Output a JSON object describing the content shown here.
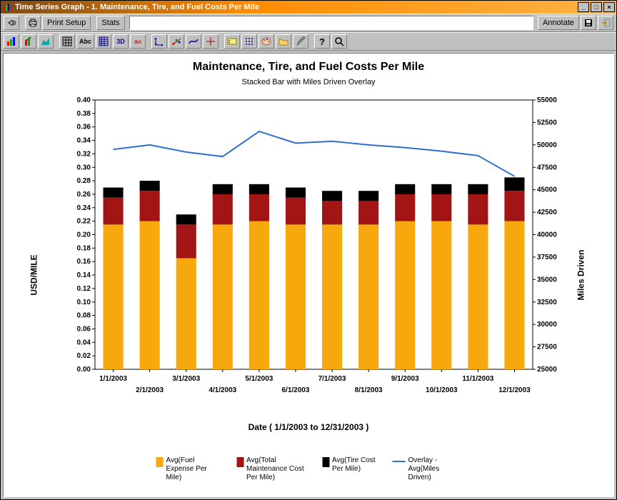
{
  "window": {
    "title": "Time Series Graph - 1.  Maintenance, Tire, and Fuel Costs Per Mile"
  },
  "toolbar1": {
    "print_setup": "Print Setup",
    "stats": "Stats",
    "annotate": "Annotate"
  },
  "chart": {
    "type": "stacked-bar-with-line-overlay",
    "title": "Maintenance, Tire, and Fuel Costs Per Mile",
    "subtitle": "Stacked Bar with Miles Driven Overlay",
    "xlabel": "Date  ( 1/1/2003  to  12/31/2003 )",
    "ylabel_left": "USD/MILE",
    "ylabel_right": "Miles Driven",
    "title_fontsize": 16,
    "subtitle_fontsize": 11,
    "label_fontsize": 12,
    "tick_fontsize": 10,
    "background_color": "#ffffff",
    "axis_color": "#000000",
    "y_left": {
      "min": 0.0,
      "max": 0.4,
      "step": 0.02
    },
    "y_right": {
      "min": 25000,
      "max": 55000,
      "step": 2500
    },
    "categories": [
      "1/1/2003",
      "2/1/2003",
      "3/1/2003",
      "4/1/2003",
      "5/1/2003",
      "6/1/2003",
      "7/1/2003",
      "8/1/2003",
      "9/1/2003",
      "10/1/2003",
      "11/1/2003",
      "12/1/2003"
    ],
    "bar_width": 0.55,
    "series": {
      "fuel": {
        "color": "#f7a80d",
        "label": "Avg(Fuel Expense Per Mile)",
        "values": [
          0.215,
          0.22,
          0.165,
          0.215,
          0.22,
          0.215,
          0.215,
          0.215,
          0.22,
          0.22,
          0.215,
          0.22
        ]
      },
      "maint": {
        "color": "#a31515",
        "label": "Avg(Total Maintenance Cost Per Mile)",
        "values": [
          0.04,
          0.045,
          0.05,
          0.045,
          0.04,
          0.04,
          0.035,
          0.035,
          0.04,
          0.04,
          0.045,
          0.045
        ]
      },
      "tire": {
        "color": "#000000",
        "label": "Avg(Tire Cost Per Mile)",
        "values": [
          0.015,
          0.015,
          0.015,
          0.015,
          0.015,
          0.015,
          0.015,
          0.015,
          0.015,
          0.015,
          0.015,
          0.02
        ]
      }
    },
    "overlay": {
      "color": "#2d6fd2",
      "line_width": 2,
      "label": "Overlay - Avg(Miles Driven)",
      "values": [
        49500,
        50000,
        49200,
        48700,
        51500,
        50200,
        50400,
        50000,
        49700,
        49300,
        48800,
        46500
      ]
    },
    "legend": [
      {
        "type": "swatch",
        "color": "#f7a80d",
        "label": "Avg(Fuel Expense Per Mile)"
      },
      {
        "type": "swatch",
        "color": "#a31515",
        "label": "Avg(Total Maintenance Cost Per Mile)"
      },
      {
        "type": "swatch",
        "color": "#000000",
        "label": "Avg(Tire Cost Per Mile)"
      },
      {
        "type": "line",
        "color": "#2d6fd2",
        "label": "Overlay - Avg(Miles Driven)"
      }
    ]
  }
}
